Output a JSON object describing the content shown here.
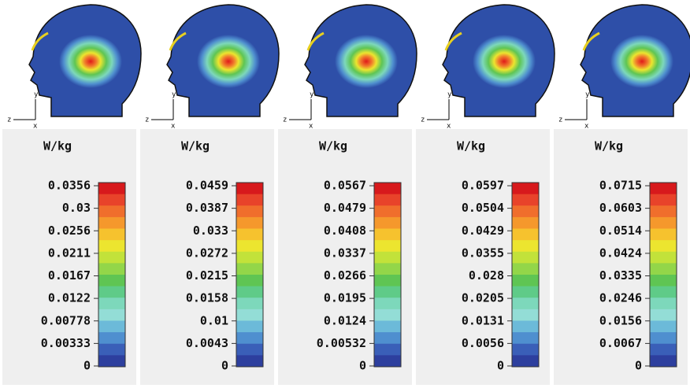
{
  "panels": [
    {
      "unit": "W/kg",
      "axis_labels": [
        "z",
        "y",
        "x"
      ],
      "ticks": [
        "0.0356",
        "0.03",
        "0.0256",
        "0.0211",
        "0.0167",
        "0.0122",
        "0.00778",
        "0.00333",
        "0"
      ]
    },
    {
      "unit": "W/kg",
      "axis_labels": [
        "z",
        "y",
        "x"
      ],
      "ticks": [
        "0.0459",
        "0.0387",
        "0.033",
        "0.0272",
        "0.0215",
        "0.0158",
        "0.01",
        "0.0043",
        "0"
      ]
    },
    {
      "unit": "W/kg",
      "axis_labels": [
        "z",
        "y",
        "x"
      ],
      "ticks": [
        "0.0567",
        "0.0479",
        "0.0408",
        "0.0337",
        "0.0266",
        "0.0195",
        "0.0124",
        "0.00532",
        "0"
      ]
    },
    {
      "unit": "W/kg",
      "axis_labels": [
        "z",
        "y",
        "x"
      ],
      "ticks": [
        "0.0597",
        "0.0504",
        "0.0429",
        "0.0355",
        "0.028",
        "0.0205",
        "0.0131",
        "0.0056",
        "0"
      ]
    },
    {
      "unit": "W/kg",
      "axis_labels": [
        "z",
        "y",
        "x"
      ],
      "ticks": [
        "0.0715",
        "0.0603",
        "0.0514",
        "0.0424",
        "0.0335",
        "0.0246",
        "0.0156",
        "0.0067",
        "0"
      ]
    }
  ],
  "colorbar": {
    "colors": [
      "#d7191c",
      "#e8432a",
      "#f06e2c",
      "#f5982c",
      "#f6c22e",
      "#ece52f",
      "#c2e23a",
      "#93d649",
      "#5fc553",
      "#5fcb88",
      "#7dd8bb",
      "#93ddd6",
      "#6cbad9",
      "#4f8fcf",
      "#3a5fb8",
      "#2d3f9e"
    ]
  }
}
